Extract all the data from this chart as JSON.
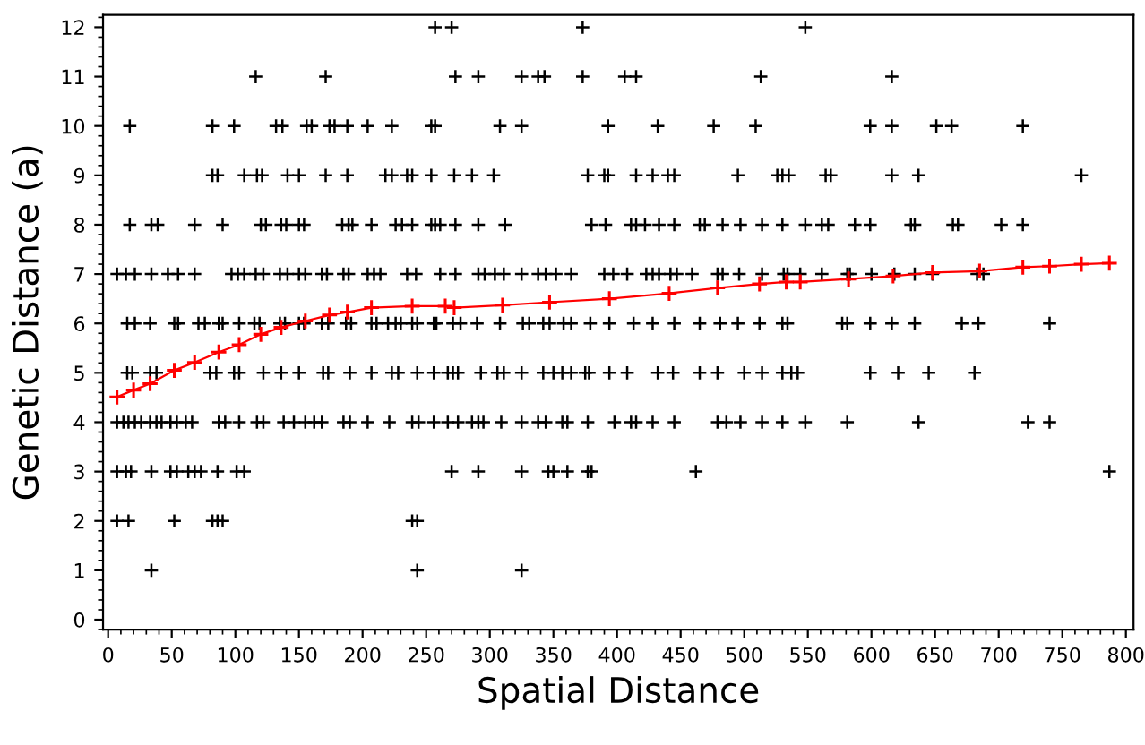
{
  "chart_data": {
    "type": "scatter",
    "xlabel": "Spatial Distance",
    "ylabel": "Genetic Distance (a)",
    "xlim": [
      -4,
      806
    ],
    "ylim": [
      -0.2,
      12.25
    ],
    "xticks": [
      0,
      50,
      100,
      150,
      200,
      250,
      300,
      350,
      400,
      450,
      500,
      550,
      600,
      650,
      700,
      750,
      800
    ],
    "yticks": [
      0,
      1,
      2,
      3,
      4,
      5,
      6,
      7,
      8,
      9,
      10,
      11,
      12
    ],
    "marker": "cross",
    "grid": false,
    "legend": false,
    "series": [
      {
        "color": "#000000",
        "x": [
          257,
          270,
          373,
          548,
          116,
          171,
          273,
          291,
          325,
          338,
          343,
          373,
          406,
          415,
          513,
          616,
          17,
          82,
          99,
          132,
          137,
          156,
          160,
          174,
          178,
          188,
          204,
          223,
          254,
          257,
          308,
          325,
          393,
          432,
          476,
          509,
          599,
          616,
          651,
          663,
          719,
          82,
          86,
          107,
          117,
          121,
          141,
          150,
          171,
          188,
          218,
          223,
          235,
          239,
          254,
          272,
          286,
          303,
          377,
          390,
          393,
          415,
          428,
          440,
          445,
          495,
          526,
          530,
          535,
          564,
          568,
          616,
          637,
          765,
          17,
          34,
          39,
          68,
          90,
          120,
          124,
          136,
          140,
          150,
          154,
          184,
          189,
          192,
          207,
          226,
          231,
          239,
          254,
          257,
          261,
          273,
          291,
          312,
          380,
          391,
          411,
          415,
          422,
          433,
          445,
          465,
          469,
          483,
          497,
          514,
          530,
          548,
          561,
          566,
          587,
          599,
          631,
          634,
          664,
          668,
          702,
          719,
          7,
          14,
          21,
          34,
          47,
          55,
          68,
          97,
          102,
          107,
          116,
          122,
          135,
          141,
          150,
          155,
          168,
          172,
          185,
          189,
          204,
          209,
          214,
          235,
          242,
          261,
          273,
          291,
          296,
          304,
          311,
          325,
          338,
          344,
          352,
          364,
          390,
          397,
          408,
          423,
          428,
          433,
          442,
          447,
          459,
          479,
          483,
          496,
          514,
          531,
          534,
          544,
          561,
          581,
          583,
          600,
          618,
          634,
          648,
          683,
          688,
          15,
          21,
          33,
          52,
          55,
          71,
          76,
          87,
          90,
          103,
          115,
          119,
          135,
          139,
          150,
          154,
          168,
          173,
          187,
          191,
          207,
          211,
          220,
          226,
          230,
          239,
          243,
          256,
          258,
          271,
          277,
          290,
          308,
          326,
          331,
          342,
          347,
          358,
          364,
          379,
          394,
          413,
          428,
          445,
          465,
          481,
          495,
          512,
          530,
          534,
          577,
          581,
          599,
          616,
          634,
          671,
          684,
          740,
          15,
          19,
          33,
          38,
          80,
          85,
          99,
          103,
          122,
          136,
          150,
          169,
          173,
          190,
          207,
          223,
          228,
          243,
          256,
          267,
          271,
          275,
          293,
          306,
          311,
          325,
          342,
          350,
          357,
          364,
          375,
          378,
          394,
          408,
          432,
          444,
          465,
          479,
          500,
          514,
          530,
          537,
          542,
          599,
          621,
          645,
          681,
          7,
          12,
          16,
          21,
          26,
          33,
          38,
          42,
          49,
          54,
          61,
          66,
          87,
          92,
          103,
          117,
          122,
          138,
          146,
          155,
          162,
          168,
          185,
          190,
          204,
          221,
          239,
          244,
          256,
          267,
          275,
          286,
          291,
          295,
          309,
          325,
          338,
          344,
          357,
          361,
          377,
          398,
          411,
          415,
          428,
          445,
          479,
          486,
          497,
          514,
          530,
          548,
          581,
          637,
          723,
          740,
          7,
          14,
          18,
          34,
          49,
          54,
          63,
          68,
          73,
          86,
          101,
          107,
          270,
          291,
          325,
          346,
          350,
          361,
          377,
          380,
          462,
          787,
          7,
          16,
          52,
          82,
          86,
          90,
          239,
          243,
          34,
          243,
          325
        ],
        "values": [
          12,
          12,
          12,
          12,
          11,
          11,
          11,
          11,
          11,
          11,
          11,
          11,
          11,
          11,
          11,
          11,
          10,
          10,
          10,
          10,
          10,
          10,
          10,
          10,
          10,
          10,
          10,
          10,
          10,
          10,
          10,
          10,
          10,
          10,
          10,
          10,
          10,
          10,
          10,
          10,
          10,
          9,
          9,
          9,
          9,
          9,
          9,
          9,
          9,
          9,
          9,
          9,
          9,
          9,
          9,
          9,
          9,
          9,
          9,
          9,
          9,
          9,
          9,
          9,
          9,
          9,
          9,
          9,
          9,
          9,
          9,
          9,
          9,
          9,
          8,
          8,
          8,
          8,
          8,
          8,
          8,
          8,
          8,
          8,
          8,
          8,
          8,
          8,
          8,
          8,
          8,
          8,
          8,
          8,
          8,
          8,
          8,
          8,
          8,
          8,
          8,
          8,
          8,
          8,
          8,
          8,
          8,
          8,
          8,
          8,
          8,
          8,
          8,
          8,
          8,
          8,
          8,
          8,
          8,
          8,
          8,
          8,
          7,
          7,
          7,
          7,
          7,
          7,
          7,
          7,
          7,
          7,
          7,
          7,
          7,
          7,
          7,
          7,
          7,
          7,
          7,
          7,
          7,
          7,
          7,
          7,
          7,
          7,
          7,
          7,
          7,
          7,
          7,
          7,
          7,
          7,
          7,
          7,
          7,
          7,
          7,
          7,
          7,
          7,
          7,
          7,
          7,
          7,
          7,
          7,
          7,
          7,
          7,
          7,
          7,
          7,
          7,
          7,
          7,
          7,
          7,
          7,
          7,
          6,
          6,
          6,
          6,
          6,
          6,
          6,
          6,
          6,
          6,
          6,
          6,
          6,
          6,
          6,
          6,
          6,
          6,
          6,
          6,
          6,
          6,
          6,
          6,
          6,
          6,
          6,
          6,
          6,
          6,
          6,
          6,
          6,
          6,
          6,
          6,
          6,
          6,
          6,
          6,
          6,
          6,
          6,
          6,
          6,
          6,
          6,
          6,
          6,
          6,
          6,
          6,
          6,
          6,
          6,
          6,
          6,
          6,
          5,
          5,
          5,
          5,
          5,
          5,
          5,
          5,
          5,
          5,
          5,
          5,
          5,
          5,
          5,
          5,
          5,
          5,
          5,
          5,
          5,
          5,
          5,
          5,
          5,
          5,
          5,
          5,
          5,
          5,
          5,
          5,
          5,
          5,
          5,
          5,
          5,
          5,
          5,
          5,
          5,
          5,
          5,
          5,
          5,
          5,
          5,
          4,
          4,
          4,
          4,
          4,
          4,
          4,
          4,
          4,
          4,
          4,
          4,
          4,
          4,
          4,
          4,
          4,
          4,
          4,
          4,
          4,
          4,
          4,
          4,
          4,
          4,
          4,
          4,
          4,
          4,
          4,
          4,
          4,
          4,
          4,
          4,
          4,
          4,
          4,
          4,
          4,
          4,
          4,
          4,
          4,
          4,
          4,
          4,
          4,
          4,
          4,
          4,
          4,
          4,
          4,
          4,
          3,
          3,
          3,
          3,
          3,
          3,
          3,
          3,
          3,
          3,
          3,
          3,
          3,
          3,
          3,
          3,
          3,
          3,
          3,
          3,
          3,
          3,
          2,
          2,
          2,
          2,
          2,
          2,
          2,
          2,
          1,
          1,
          1
        ]
      },
      {
        "type": "line",
        "color": "#ff0000",
        "x": [
          7,
          20,
          33,
          52,
          68,
          87,
          103,
          120,
          136,
          155,
          174,
          188,
          207,
          239,
          265,
          272,
          310,
          347,
          394,
          441,
          479,
          512,
          533,
          544,
          582,
          617,
          648,
          685,
          719,
          740,
          765,
          787
        ],
        "values": [
          4.51,
          4.65,
          4.78,
          5.05,
          5.21,
          5.42,
          5.57,
          5.78,
          5.92,
          6.05,
          6.17,
          6.23,
          6.32,
          6.35,
          6.35,
          6.32,
          6.37,
          6.43,
          6.5,
          6.61,
          6.72,
          6.8,
          6.84,
          6.84,
          6.9,
          6.96,
          7.03,
          7.06,
          7.14,
          7.16,
          7.2,
          7.22
        ]
      }
    ]
  }
}
